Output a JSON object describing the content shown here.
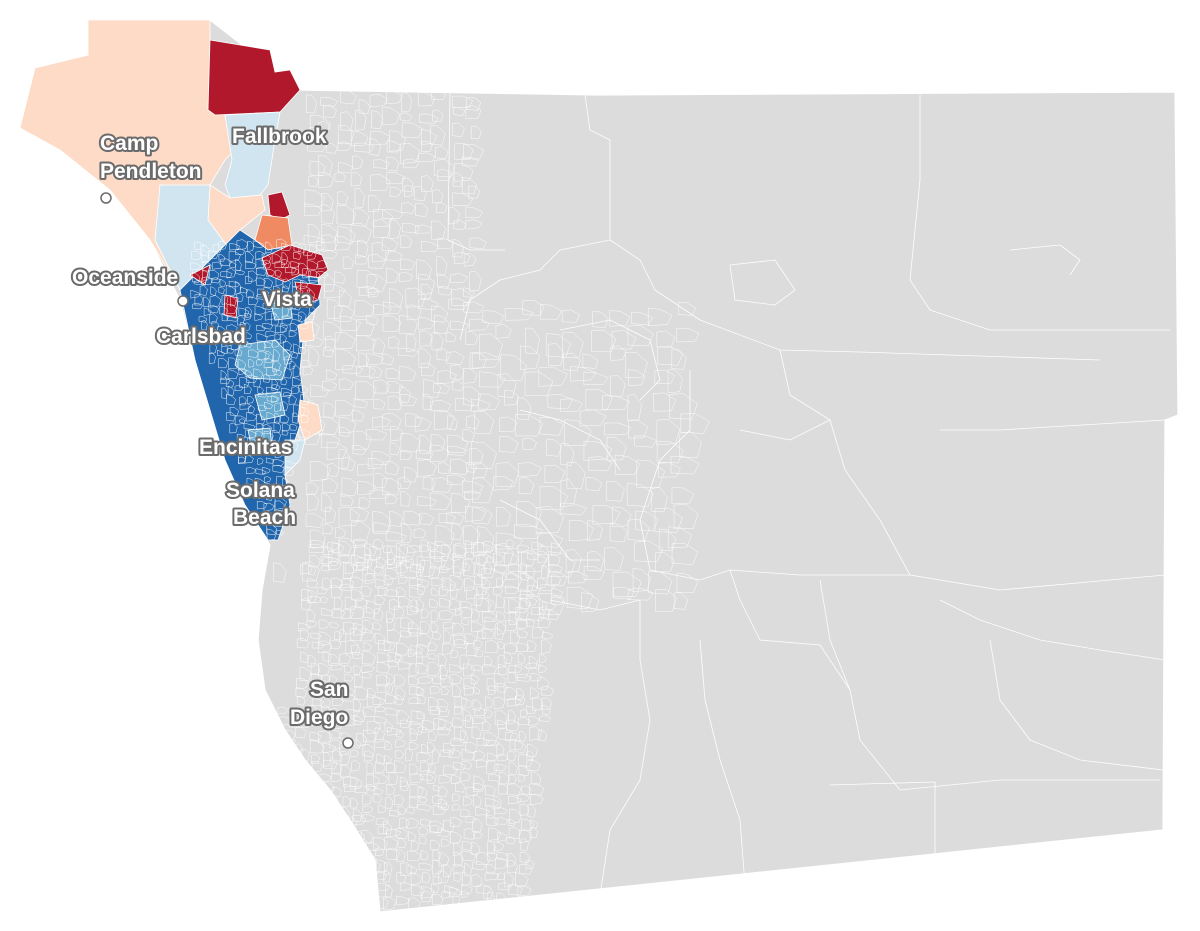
{
  "map": {
    "colors": {
      "background": "#ffffff",
      "county_fill": "#dcdcdc",
      "boundary": "#ffffff",
      "dark_red": "#b2182b",
      "orange": "#ef8a62",
      "light_pink": "#fddbc7",
      "light_blue": "#d1e5f0",
      "mid_blue": "#67a9cf",
      "dark_blue": "#2166ac",
      "label_text": "#ffffff",
      "label_halo": "#6b6b6b"
    },
    "cities": [
      {
        "id": "camp-pendleton",
        "lines": [
          "Camp",
          "Pendleton"
        ],
        "has_dot": true
      },
      {
        "id": "fallbrook",
        "lines": [
          "Fallbrook"
        ],
        "has_dot": false
      },
      {
        "id": "oceanside",
        "lines": [
          "Oceanside"
        ],
        "has_dot": true
      },
      {
        "id": "vista",
        "lines": [
          "Vista"
        ],
        "has_dot": false
      },
      {
        "id": "carlsbad",
        "lines": [
          "Carlsbad"
        ],
        "has_dot": false
      },
      {
        "id": "encinitas",
        "lines": [
          "Encinitas"
        ],
        "has_dot": false
      },
      {
        "id": "solana-beach",
        "lines": [
          "Solana",
          "Beach"
        ],
        "has_dot": false
      },
      {
        "id": "san-diego",
        "lines": [
          "San",
          "Diego"
        ],
        "has_dot": true
      }
    ]
  }
}
